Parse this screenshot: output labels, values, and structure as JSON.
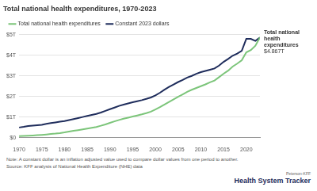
{
  "chart_data": {
    "type": "line",
    "title": "Total national health expenditures, 1970-2023",
    "note": "Note: A constant dollar is an inflation adjusted value used to compare dollar values from one period to another.",
    "source": "Source: KFF analysis of National Health Expenditure (NHE) data",
    "logo": [
      "Peterson-KFF",
      "Health System Tracker"
    ],
    "x": [
      1970,
      1971,
      1972,
      1973,
      1974,
      1975,
      1976,
      1977,
      1978,
      1979,
      1980,
      1981,
      1982,
      1983,
      1984,
      1985,
      1986,
      1987,
      1988,
      1989,
      1990,
      1991,
      1992,
      1993,
      1994,
      1995,
      1996,
      1997,
      1998,
      1999,
      2000,
      2001,
      2002,
      2003,
      2004,
      2005,
      2006,
      2007,
      2008,
      2009,
      2010,
      2011,
      2012,
      2013,
      2014,
      2015,
      2016,
      2017,
      2018,
      2019,
      2020,
      2021,
      2022,
      2023
    ],
    "series": [
      {
        "name": "Total national health expenditures",
        "color": "#7cc57a",
        "values": [
          0.074,
          0.082,
          0.092,
          0.102,
          0.116,
          0.133,
          0.152,
          0.173,
          0.194,
          0.22,
          0.253,
          0.294,
          0.331,
          0.364,
          0.399,
          0.439,
          0.475,
          0.516,
          0.576,
          0.642,
          0.719,
          0.788,
          0.855,
          0.917,
          0.967,
          1.022,
          1.074,
          1.129,
          1.19,
          1.262,
          1.366,
          1.481,
          1.611,
          1.73,
          1.854,
          1.98,
          2.103,
          2.227,
          2.323,
          2.411,
          2.5,
          2.586,
          2.684,
          2.773,
          2.936,
          3.105,
          3.252,
          3.453,
          3.597,
          3.757,
          4.145,
          4.256,
          4.465,
          4.867
        ]
      },
      {
        "name": "Constant 2023 dollars",
        "color": "#1f2d5c",
        "values": [
          0.49,
          0.52,
          0.56,
          0.58,
          0.6,
          0.62,
          0.67,
          0.71,
          0.74,
          0.77,
          0.8,
          0.85,
          0.9,
          0.95,
          1.0,
          1.05,
          1.1,
          1.15,
          1.22,
          1.3,
          1.38,
          1.46,
          1.54,
          1.6,
          1.66,
          1.72,
          1.77,
          1.82,
          1.88,
          1.95,
          2.05,
          2.18,
          2.33,
          2.46,
          2.58,
          2.7,
          2.8,
          2.92,
          3.0,
          3.1,
          3.18,
          3.24,
          3.3,
          3.36,
          3.5,
          3.68,
          3.82,
          3.98,
          4.08,
          4.22,
          4.8,
          4.8,
          4.7,
          4.867
        ]
      }
    ],
    "xlim": [
      1970,
      2023
    ],
    "xticks": [
      1970,
      1975,
      1980,
      1985,
      1990,
      1995,
      2000,
      2005,
      2010,
      2015,
      2020
    ],
    "ylim": [
      0,
      5
    ],
    "yticks": [
      {
        "value": 0,
        "label": "$0"
      },
      {
        "value": 1,
        "label": "$1T"
      },
      {
        "value": 2,
        "label": "$2T"
      },
      {
        "value": 3,
        "label": "$3T"
      },
      {
        "value": 4,
        "label": "$4T"
      },
      {
        "value": 5,
        "label": "$5T"
      }
    ],
    "annotations": [
      {
        "text": "Total national health expenditures",
        "value_label": "$4.867T",
        "x": 2023,
        "value": 4.867
      }
    ],
    "grid": true,
    "legend": "top-left"
  }
}
